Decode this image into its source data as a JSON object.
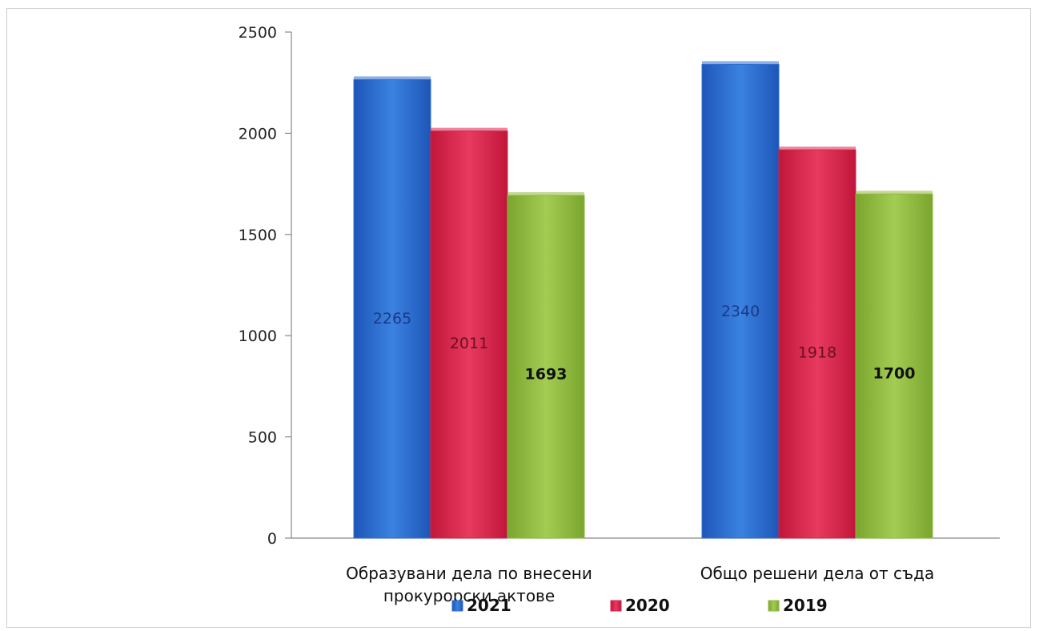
{
  "chart_data": {
    "type": "bar",
    "categories": [
      "Образувани дела по внесени прокурорски актове",
      "Общо решени дела от съда"
    ],
    "series": [
      {
        "name": "2021",
        "values": [
          2265,
          2340
        ],
        "color": "#2f6fd0",
        "label_color": "#1a3a8a",
        "label_bold": false
      },
      {
        "name": "2020",
        "values": [
          2011,
          1918
        ],
        "color": "#d9234a",
        "label_color": "#6a1020",
        "label_bold": false
      },
      {
        "name": "2019",
        "values": [
          1693,
          1700
        ],
        "color": "#8fba3e",
        "label_color": "#111111",
        "label_bold": true
      }
    ],
    "ylim": [
      0,
      2500
    ],
    "yticks": [
      0,
      500,
      1000,
      1500,
      2000,
      2500
    ],
    "legend_position": "bottom",
    "grid": false
  }
}
